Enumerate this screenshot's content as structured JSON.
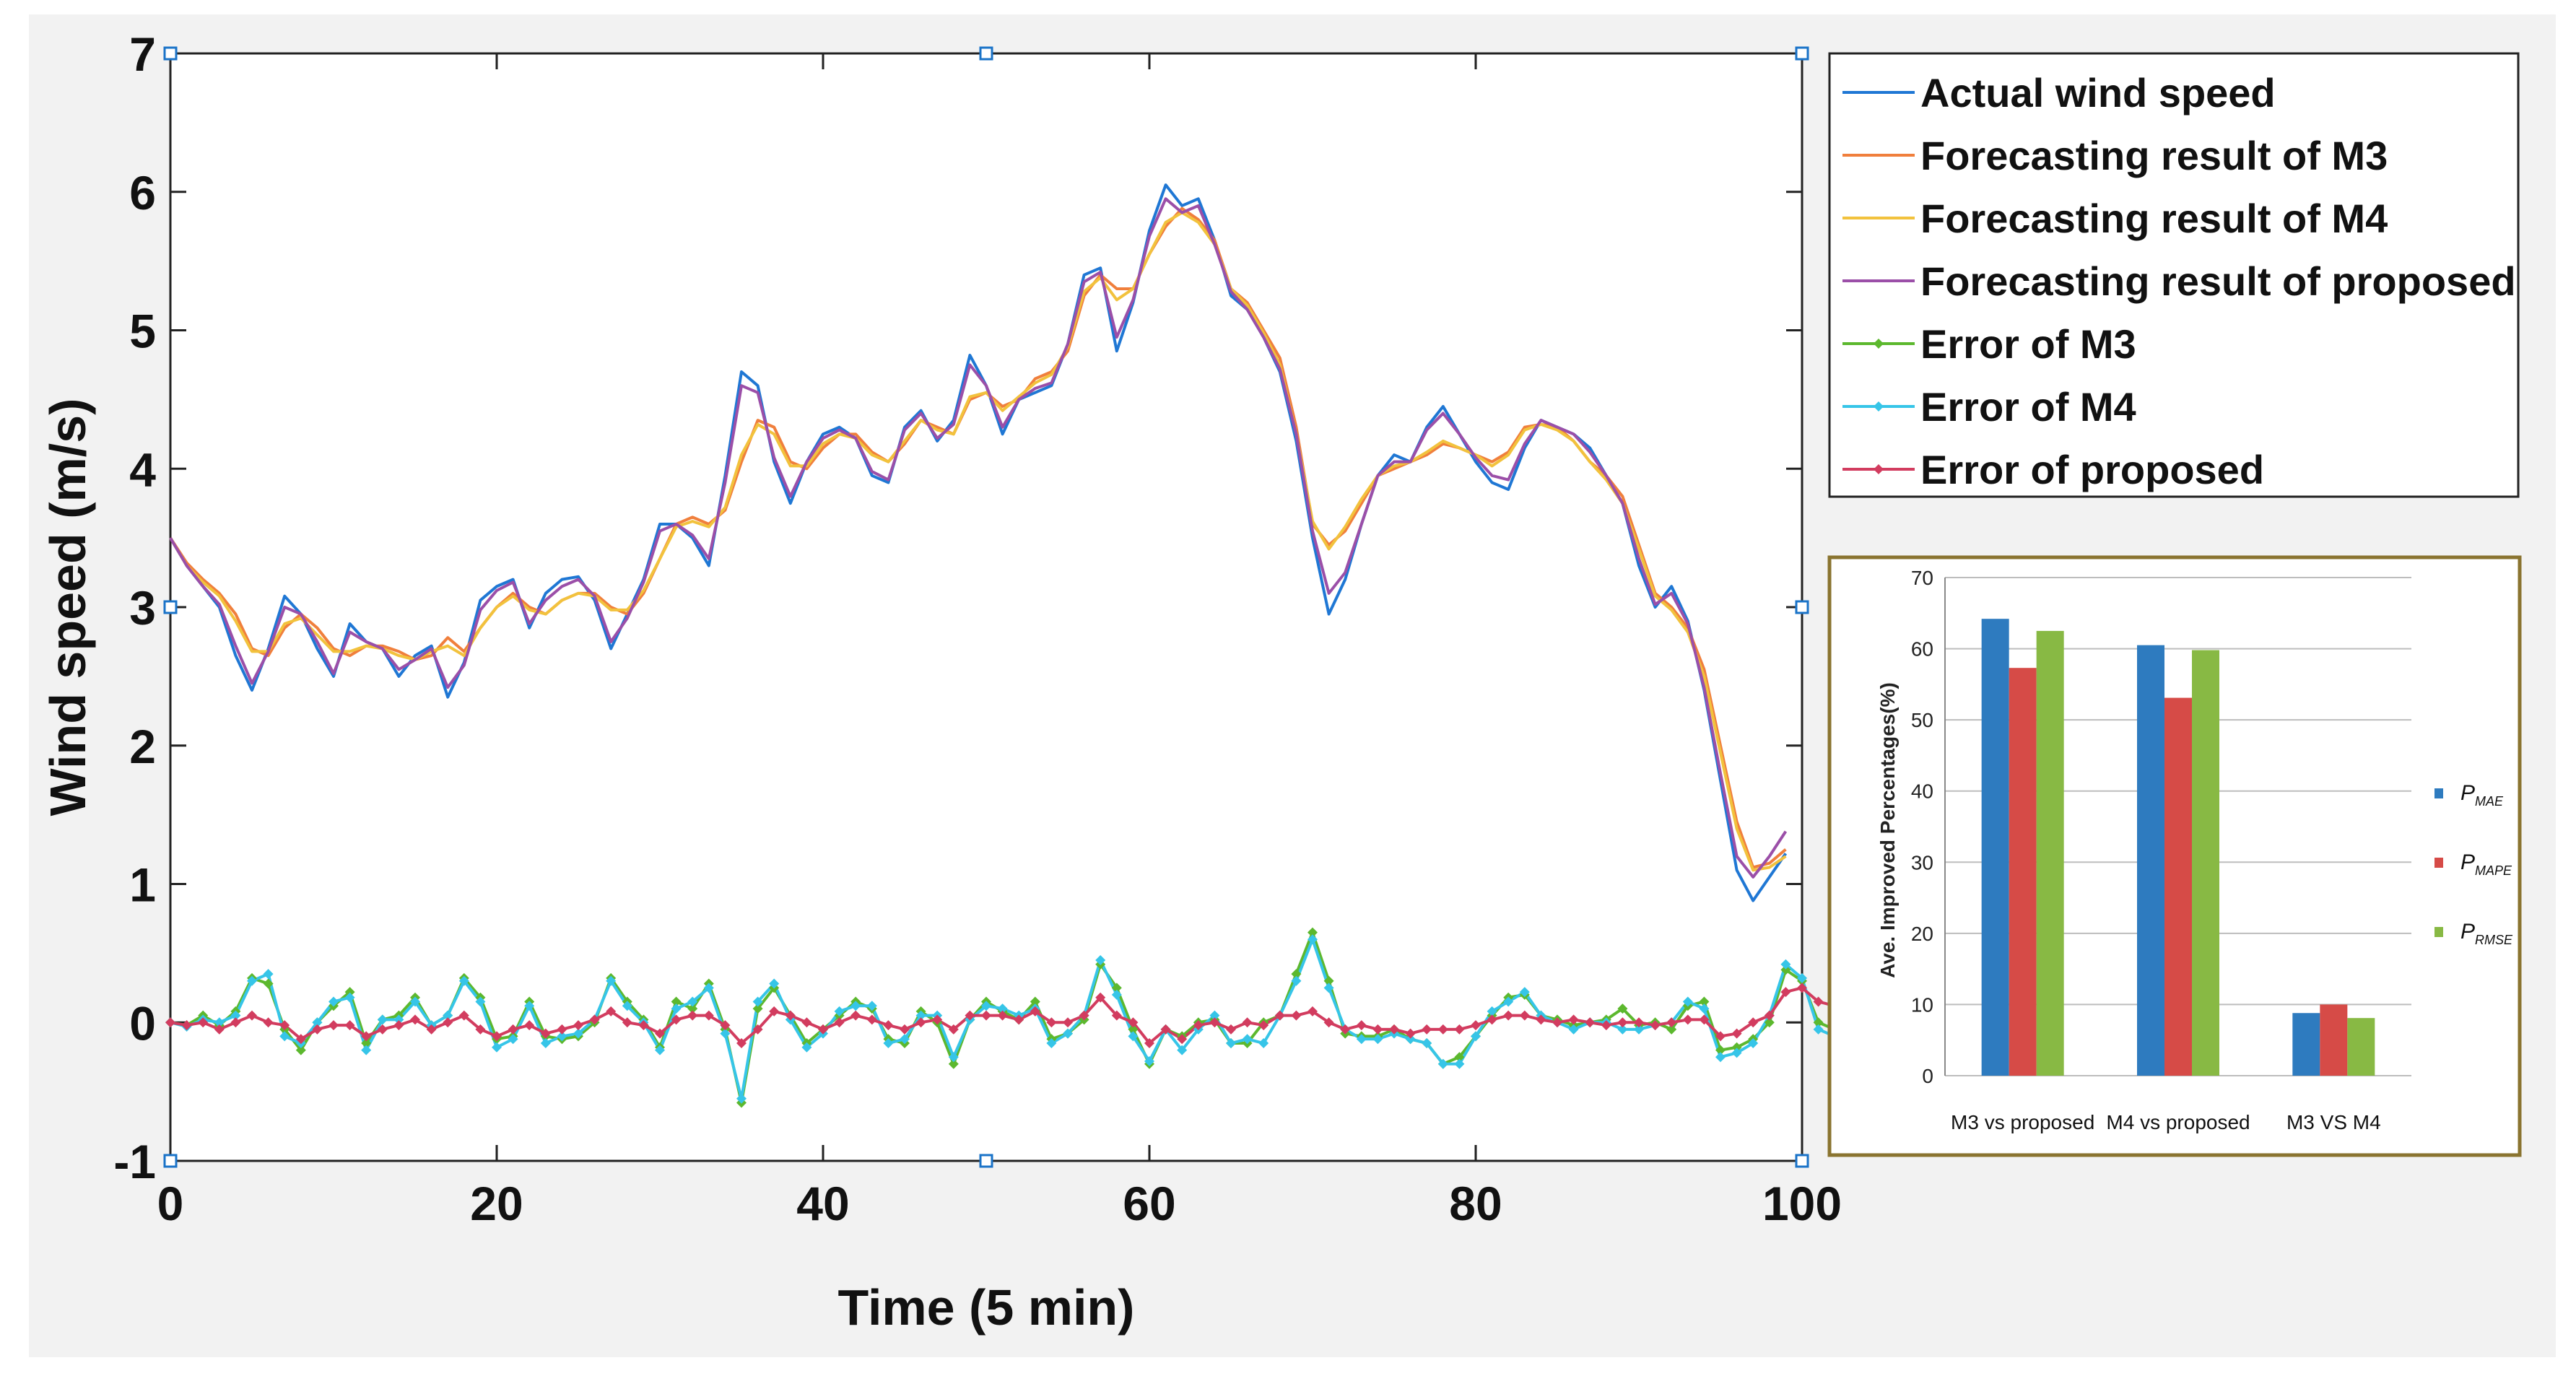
{
  "chart_data": [
    {
      "type": "line",
      "xlabel": "Time (5 min)",
      "ylabel": "Wind speed (m/s)",
      "xlim": [
        0,
        100
      ],
      "ylim": [
        -1,
        7
      ],
      "x_ticks": [
        "0",
        "20",
        "40",
        "60",
        "80",
        "100"
      ],
      "y_ticks": [
        "-1",
        "0",
        "1",
        "2",
        "3",
        "4",
        "5",
        "6",
        "7"
      ],
      "legend_position": "outside-top-right",
      "series": [
        {
          "name": "Actual wind speed",
          "color": "#1f77d4",
          "marker": "none",
          "values": [
            3.5,
            3.3,
            3.15,
            3.0,
            2.65,
            2.4,
            2.7,
            3.08,
            2.95,
            2.7,
            2.5,
            2.88,
            2.75,
            2.7,
            2.5,
            2.65,
            2.72,
            2.35,
            2.6,
            3.05,
            3.15,
            3.2,
            2.85,
            3.1,
            3.2,
            3.22,
            3.05,
            2.7,
            2.95,
            3.2,
            3.6,
            3.6,
            3.5,
            3.3,
            3.95,
            4.7,
            4.6,
            4.05,
            3.75,
            4.05,
            4.25,
            4.3,
            4.22,
            3.95,
            3.9,
            4.3,
            4.42,
            4.2,
            4.35,
            4.82,
            4.6,
            4.25,
            4.5,
            4.55,
            4.6,
            4.9,
            5.4,
            5.45,
            4.85,
            5.2,
            5.72,
            6.05,
            5.9,
            5.95,
            5.65,
            5.25,
            5.15,
            4.95,
            4.7,
            4.2,
            3.5,
            2.95,
            3.2,
            3.6,
            3.95,
            4.1,
            4.05,
            4.3,
            4.45,
            4.25,
            4.05,
            3.9,
            3.85,
            4.15,
            4.35,
            4.3,
            4.25,
            4.15,
            3.95,
            3.75,
            3.3,
            3.0,
            3.15,
            2.9,
            2.4,
            1.75,
            1.1,
            0.88,
            1.05,
            1.22
          ]
        },
        {
          "name": "Forecasting result of M3",
          "color": "#f07f3c",
          "marker": "none",
          "values": [
            3.5,
            3.32,
            3.2,
            3.1,
            2.95,
            2.7,
            2.65,
            2.85,
            2.95,
            2.85,
            2.7,
            2.65,
            2.72,
            2.72,
            2.68,
            2.62,
            2.65,
            2.78,
            2.68,
            2.85,
            3.0,
            3.1,
            3.0,
            2.95,
            3.05,
            3.1,
            3.1,
            3.0,
            2.95,
            3.1,
            3.35,
            3.6,
            3.65,
            3.6,
            3.7,
            4.05,
            4.35,
            4.3,
            4.05,
            4.0,
            4.15,
            4.25,
            4.25,
            4.12,
            4.05,
            4.18,
            4.35,
            4.3,
            4.25,
            4.5,
            4.55,
            4.45,
            4.5,
            4.65,
            4.7,
            4.85,
            5.25,
            5.4,
            5.3,
            5.3,
            5.55,
            5.75,
            5.88,
            5.8,
            5.65,
            5.3,
            5.2,
            5.0,
            4.8,
            4.3,
            3.6,
            3.45,
            3.55,
            3.75,
            3.95,
            4.0,
            4.05,
            4.1,
            4.18,
            4.15,
            4.1,
            4.05,
            4.12,
            4.3,
            4.32,
            4.3,
            4.2,
            4.05,
            3.95,
            3.8,
            3.45,
            3.1,
            3.0,
            2.85,
            2.55,
            2.0,
            1.45,
            1.12,
            1.15,
            1.25
          ]
        },
        {
          "name": "Forecasting result of M4",
          "color": "#f2c23d",
          "marker": "none",
          "values": [
            3.5,
            3.3,
            3.18,
            3.08,
            2.9,
            2.68,
            2.68,
            2.88,
            2.92,
            2.8,
            2.68,
            2.68,
            2.72,
            2.7,
            2.65,
            2.62,
            2.68,
            2.72,
            2.65,
            2.85,
            3.0,
            3.08,
            2.98,
            2.95,
            3.05,
            3.1,
            3.08,
            2.98,
            2.98,
            3.12,
            3.35,
            3.58,
            3.62,
            3.58,
            3.72,
            4.1,
            4.32,
            4.25,
            4.02,
            4.02,
            4.18,
            4.25,
            4.22,
            4.1,
            4.05,
            4.2,
            4.35,
            4.28,
            4.25,
            4.52,
            4.55,
            4.42,
            4.52,
            4.62,
            4.68,
            4.88,
            5.28,
            5.38,
            5.22,
            5.3,
            5.55,
            5.78,
            5.85,
            5.78,
            5.62,
            5.3,
            5.18,
            4.98,
            4.75,
            4.25,
            3.62,
            3.42,
            3.58,
            3.78,
            3.95,
            4.02,
            4.05,
            4.12,
            4.2,
            4.15,
            4.1,
            4.02,
            4.1,
            4.28,
            4.32,
            4.28,
            4.2,
            4.05,
            3.92,
            3.75,
            3.42,
            3.08,
            2.98,
            2.82,
            2.5,
            1.95,
            1.4,
            1.1,
            1.12,
            1.2
          ]
        },
        {
          "name": "Forecasting result of proposed",
          "color": "#9b4fa8",
          "marker": "none",
          "values": [
            3.5,
            3.3,
            3.15,
            3.02,
            2.72,
            2.45,
            2.68,
            3.0,
            2.95,
            2.75,
            2.52,
            2.82,
            2.75,
            2.7,
            2.55,
            2.62,
            2.7,
            2.42,
            2.58,
            2.98,
            3.12,
            3.18,
            2.88,
            3.05,
            3.15,
            3.2,
            3.08,
            2.75,
            2.92,
            3.18,
            3.55,
            3.6,
            3.52,
            3.35,
            3.9,
            4.6,
            4.55,
            4.08,
            3.8,
            4.05,
            4.22,
            4.28,
            4.22,
            3.98,
            3.92,
            4.28,
            4.4,
            4.22,
            4.32,
            4.75,
            4.6,
            4.3,
            4.5,
            4.58,
            4.62,
            4.9,
            5.35,
            5.42,
            4.95,
            5.22,
            5.68,
            5.95,
            5.85,
            5.9,
            5.62,
            5.28,
            5.15,
            4.95,
            4.72,
            4.25,
            3.55,
            3.1,
            3.25,
            3.6,
            3.95,
            4.05,
            4.05,
            4.28,
            4.4,
            4.25,
            4.08,
            3.95,
            3.92,
            4.18,
            4.35,
            4.3,
            4.25,
            4.12,
            3.95,
            3.75,
            3.35,
            3.02,
            3.1,
            2.88,
            2.42,
            1.8,
            1.2,
            1.05,
            1.2,
            1.38
          ]
        },
        {
          "name": "Error of M3",
          "color": "#5cb82e",
          "marker": "diamond",
          "values": [
            0.0,
            -0.02,
            0.05,
            -0.02,
            0.08,
            0.32,
            0.28,
            -0.05,
            -0.2,
            0.0,
            0.12,
            0.22,
            -0.15,
            0.02,
            0.05,
            0.18,
            -0.02,
            0.05,
            0.32,
            0.18,
            -0.12,
            -0.1,
            0.15,
            -0.1,
            -0.12,
            -0.1,
            0.0,
            0.32,
            0.15,
            0.02,
            -0.18,
            0.15,
            0.1,
            0.28,
            -0.05,
            -0.58,
            0.1,
            0.25,
            0.05,
            -0.15,
            -0.05,
            0.05,
            0.15,
            0.1,
            -0.12,
            -0.15,
            0.08,
            0.0,
            -0.3,
            0.02,
            0.15,
            0.08,
            0.02,
            0.15,
            -0.12,
            -0.08,
            0.02,
            0.42,
            0.25,
            -0.05,
            -0.3,
            -0.05,
            -0.1,
            0.0,
            0.02,
            -0.15,
            -0.15,
            0.0,
            0.05,
            0.35,
            0.65,
            0.3,
            -0.08,
            -0.1,
            -0.1,
            -0.05,
            -0.12,
            -0.15,
            -0.3,
            -0.25,
            -0.1,
            0.05,
            0.18,
            0.2,
            0.05,
            0.02,
            -0.02,
            0.0,
            0.02,
            0.1,
            -0.02,
            0.0,
            -0.05,
            0.12,
            0.15,
            -0.2,
            -0.18,
            -0.12,
            0.0,
            0.38,
            0.3,
            0.0,
            -0.05
          ]
        },
        {
          "name": "Error of M4",
          "color": "#36c5e8",
          "marker": "diamond",
          "values": [
            0.0,
            -0.03,
            0.02,
            0.0,
            0.05,
            0.3,
            0.35,
            -0.1,
            -0.15,
            0.0,
            0.15,
            0.18,
            -0.2,
            0.02,
            0.02,
            0.15,
            -0.02,
            0.05,
            0.3,
            0.15,
            -0.18,
            -0.12,
            0.12,
            -0.15,
            -0.1,
            -0.08,
            0.02,
            0.3,
            0.12,
            0.0,
            -0.2,
            0.1,
            0.15,
            0.25,
            -0.08,
            -0.55,
            0.15,
            0.28,
            0.02,
            -0.18,
            -0.08,
            0.08,
            0.12,
            0.12,
            -0.15,
            -0.12,
            0.05,
            0.05,
            -0.25,
            0.02,
            0.12,
            0.1,
            0.05,
            0.1,
            -0.15,
            -0.08,
            0.05,
            0.45,
            0.2,
            -0.1,
            -0.28,
            -0.05,
            -0.2,
            -0.05,
            0.05,
            -0.15,
            -0.12,
            -0.15,
            0.05,
            0.3,
            0.6,
            0.25,
            -0.05,
            -0.12,
            -0.12,
            -0.08,
            -0.12,
            -0.15,
            -0.3,
            -0.3,
            -0.1,
            0.08,
            0.15,
            0.22,
            0.05,
            0.0,
            -0.05,
            0.0,
            0.0,
            -0.05,
            -0.05,
            -0.02,
            0.0,
            0.15,
            0.1,
            -0.25,
            -0.22,
            -0.15,
            0.05,
            0.42,
            0.32,
            -0.05,
            -0.1
          ]
        },
        {
          "name": "Error of proposed",
          "color": "#d23c5f",
          "marker": "diamond",
          "values": [
            0.0,
            -0.02,
            0.0,
            -0.05,
            0.0,
            0.05,
            0.0,
            -0.02,
            -0.12,
            -0.05,
            -0.02,
            -0.02,
            -0.1,
            -0.05,
            -0.02,
            0.02,
            -0.05,
            0.0,
            0.05,
            -0.05,
            -0.1,
            -0.05,
            -0.02,
            -0.08,
            -0.05,
            -0.02,
            0.02,
            0.08,
            0.0,
            -0.02,
            -0.08,
            0.02,
            0.05,
            0.05,
            -0.02,
            -0.15,
            -0.05,
            0.08,
            0.05,
            0.0,
            -0.05,
            0.0,
            0.05,
            0.02,
            -0.02,
            -0.05,
            0.0,
            0.02,
            -0.05,
            0.05,
            0.05,
            0.05,
            0.02,
            0.08,
            0.0,
            0.0,
            0.05,
            0.18,
            0.05,
            0.0,
            -0.15,
            -0.05,
            -0.12,
            -0.02,
            0.0,
            -0.05,
            0.0,
            -0.02,
            0.05,
            0.05,
            0.08,
            0.0,
            -0.05,
            -0.02,
            -0.05,
            -0.05,
            -0.08,
            -0.05,
            -0.05,
            -0.05,
            -0.02,
            0.02,
            0.05,
            0.05,
            0.02,
            0.0,
            0.02,
            0.0,
            -0.02,
            0.0,
            0.0,
            -0.02,
            0.0,
            0.02,
            0.02,
            -0.1,
            -0.08,
            0.0,
            0.05,
            0.22,
            0.25,
            0.15,
            0.12
          ]
        }
      ]
    },
    {
      "type": "bar",
      "title": "",
      "ylabel": "Ave.  Improved Percentages(%)",
      "ylim": [
        0,
        70
      ],
      "y_ticks": [
        "0",
        "10",
        "20",
        "30",
        "40",
        "50",
        "60",
        "70"
      ],
      "categories": [
        "M3 vs proposed",
        "M4 vs proposed",
        "M3 VS M4"
      ],
      "legend_position": "right",
      "series": [
        {
          "name": "P",
          "subscript": "MAE",
          "color": "#2e7bbf",
          "values": [
            64.2,
            60.5,
            8.8
          ]
        },
        {
          "name": "P",
          "subscript": "MAPE",
          "color": "#d64b47",
          "values": [
            57.3,
            53.1,
            10.0
          ]
        },
        {
          "name": "P",
          "subscript": "RMSE",
          "color": "#88b944",
          "values": [
            62.5,
            59.8,
            8.1
          ]
        }
      ]
    }
  ]
}
